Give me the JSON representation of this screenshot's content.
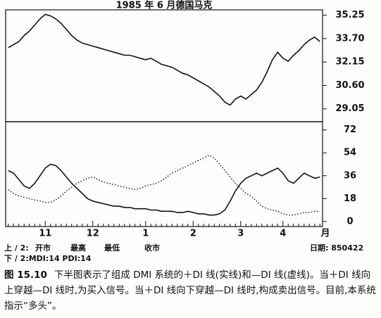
{
  "chart_data": [
    {
      "type": "line",
      "title": "1985 年 6 月德国马克",
      "ylim": [
        28.2,
        35.6
      ],
      "yticks": [
        35.25,
        {
          "value": 33.7,
          "label": "33.70"
        },
        32.15,
        {
          "value": 30.6,
          "label": "30.60"
        },
        29.05
      ],
      "series": [
        {
          "color": "#111",
          "style": "solid",
          "values": [
            33.1,
            33.3,
            33.5,
            33.9,
            34.2,
            34.6,
            35.0,
            35.3,
            35.2,
            35.0,
            34.7,
            34.3,
            33.9,
            33.6,
            33.4,
            33.3,
            33.2,
            33.1,
            33.0,
            32.9,
            32.8,
            32.7,
            32.6,
            32.6,
            32.5,
            32.4,
            32.3,
            32.4,
            32.2,
            32.0,
            31.9,
            31.8,
            31.6,
            31.4,
            31.3,
            31.1,
            30.9,
            30.7,
            30.5,
            30.2,
            29.9,
            29.5,
            29.3,
            29.7,
            29.9,
            29.7,
            30.0,
            30.3,
            30.8,
            31.5,
            32.3,
            32.8,
            32.4,
            32.2,
            32.6,
            32.9,
            33.3,
            33.6,
            33.8,
            33.5
          ]
        }
      ]
    },
    {
      "type": "line",
      "categories": [
        null,
        null,
        null,
        null,
        null,
        null,
        null,
        "11",
        null,
        null,
        null,
        null,
        null,
        null,
        null,
        null,
        "12",
        null,
        null,
        null,
        null,
        null,
        null,
        null,
        null,
        null,
        "1",
        null,
        null,
        null,
        null,
        null,
        null,
        null,
        null,
        "2",
        null,
        null,
        null,
        null,
        null,
        null,
        null,
        null,
        "3",
        null,
        null,
        null,
        null,
        null,
        null,
        null,
        "4",
        null,
        null,
        null,
        null,
        null,
        null,
        null
      ],
      "x_unit": "月",
      "ylim": [
        -4,
        78.5
      ],
      "yticks": [
        72,
        54,
        36,
        18,
        0
      ],
      "series": [
        {
          "color": "#111",
          "style": "solid",
          "values": [
            40,
            38,
            33,
            28,
            26,
            30,
            36,
            42,
            45,
            44,
            40,
            35,
            30,
            26,
            22,
            18,
            16,
            15,
            14,
            13,
            12,
            12,
            11,
            11,
            10,
            10,
            10,
            9,
            9,
            8,
            8,
            8,
            7,
            7,
            8,
            7,
            6,
            6,
            5,
            5,
            6,
            9,
            16,
            24,
            30,
            34,
            36,
            38,
            36,
            38,
            40,
            42,
            38,
            32,
            30,
            34,
            38,
            36,
            34,
            35
          ]
        },
        {
          "color": "#111",
          "style": "dotted",
          "values": [
            25,
            22,
            20,
            19,
            18,
            17,
            16,
            15,
            15,
            17,
            20,
            24,
            27,
            30,
            32,
            34,
            35,
            33,
            31,
            30,
            29,
            28,
            27,
            26,
            25,
            26,
            28,
            29,
            30,
            32,
            35,
            38,
            40,
            42,
            44,
            46,
            48,
            50,
            52,
            50,
            45,
            40,
            35,
            30,
            26,
            22,
            20,
            16,
            12,
            10,
            9,
            8,
            6,
            5,
            5,
            6,
            7,
            7,
            8,
            8
          ]
        }
      ]
    }
  ],
  "footer": {
    "upper": "上 / 2:",
    "fields": [
      "开市",
      "最高",
      "最低",
      "收市"
    ],
    "date": "日期: 850422",
    "lower": "下 / 2:MDI:14 PDI:14"
  },
  "caption": {
    "label": "图 15.10",
    "text": "下半图表示了组成 DMI 系统的＋DI 线(实线)和—DI 线(虚线)。当＋DI 线向上穿越—DI 线时,为买入信号。当＋DI 线向下穿越—DI 线时,构成卖出信号。目前,本系统指示“多头”。"
  }
}
